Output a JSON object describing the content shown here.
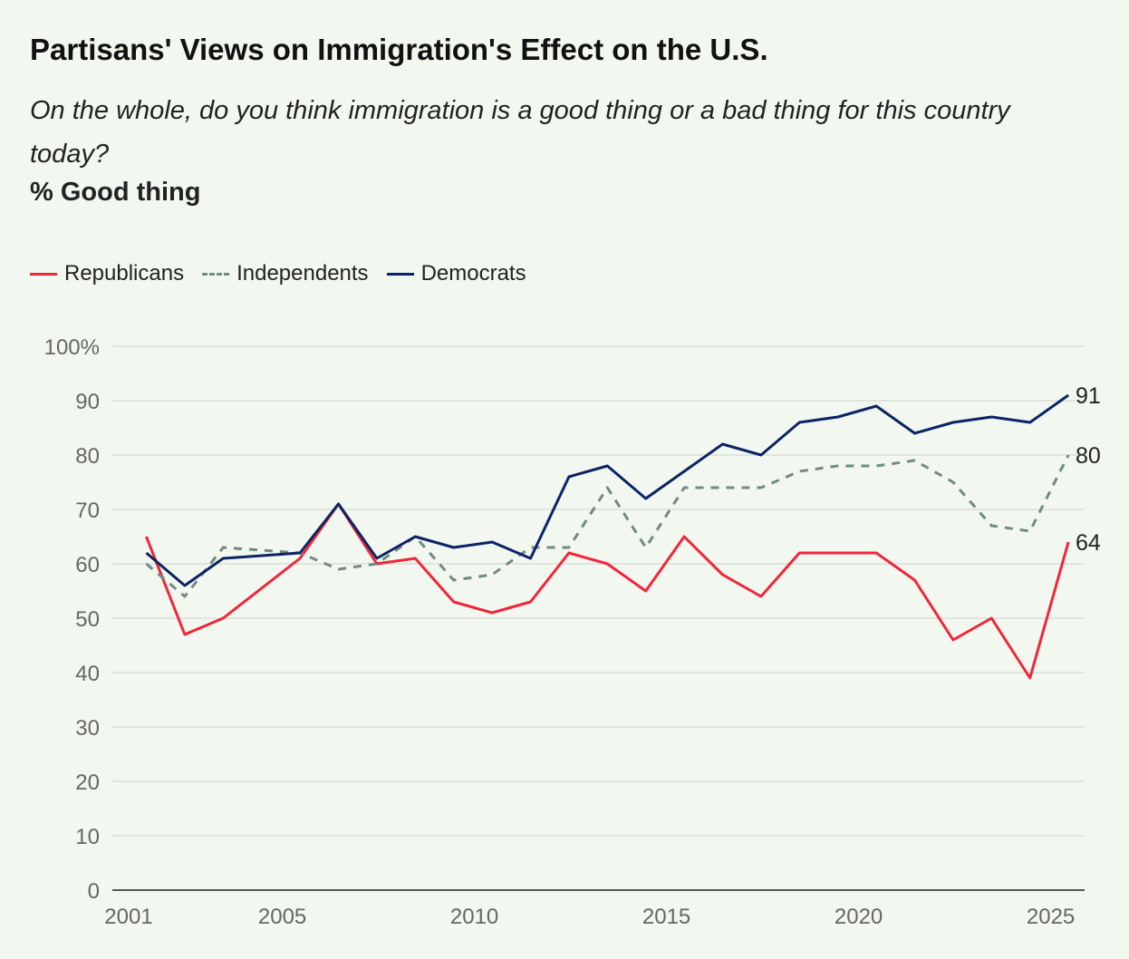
{
  "chart_data": {
    "type": "line",
    "title": "Partisans' Views on Immigration's Effect on the U.S.",
    "subtitle": "On the whole, do you think immigration is a good thing or a bad thing for this country today?",
    "ylabel": "% Good thing",
    "xlabel": "",
    "ylim": [
      0,
      100
    ],
    "xlim": [
      2001,
      2026
    ],
    "y_ticks": [
      "0",
      "10",
      "20",
      "30",
      "40",
      "50",
      "60",
      "70",
      "80",
      "90",
      "100%"
    ],
    "x_ticks": [
      "2001",
      "2005",
      "2010",
      "2015",
      "2020",
      "2025"
    ],
    "legend_position": "top-left",
    "grid": true,
    "x": [
      2001,
      2002,
      2003,
      2005,
      2006,
      2007,
      2008,
      2009,
      2010,
      2011,
      2012,
      2013,
      2014,
      2015,
      2016,
      2017,
      2018,
      2019,
      2020,
      2021,
      2022,
      2023,
      2024,
      2025
    ],
    "series": [
      {
        "name": "Republicans",
        "color": "#f0263a",
        "dash": false,
        "end_label": "64",
        "values": [
          65,
          47,
          50,
          61,
          71,
          60,
          61,
          53,
          51,
          53,
          62,
          60,
          55,
          65,
          58,
          54,
          62,
          62,
          62,
          57,
          46,
          50,
          39,
          64
        ]
      },
      {
        "name": "Independents",
        "color": "#6f8c84",
        "dash": true,
        "end_label": "80",
        "values": [
          60,
          54,
          63,
          62,
          59,
          60,
          65,
          57,
          58,
          63,
          63,
          74,
          63,
          74,
          74,
          74,
          77,
          78,
          78,
          79,
          75,
          67,
          66,
          80
        ]
      },
      {
        "name": "Democrats",
        "color": "#0b2466",
        "dash": false,
        "end_label": "91",
        "values": [
          62,
          56,
          61,
          62,
          71,
          61,
          65,
          63,
          64,
          61,
          76,
          78,
          72,
          77,
          82,
          80,
          86,
          87,
          89,
          84,
          86,
          87,
          86,
          91
        ]
      }
    ]
  }
}
